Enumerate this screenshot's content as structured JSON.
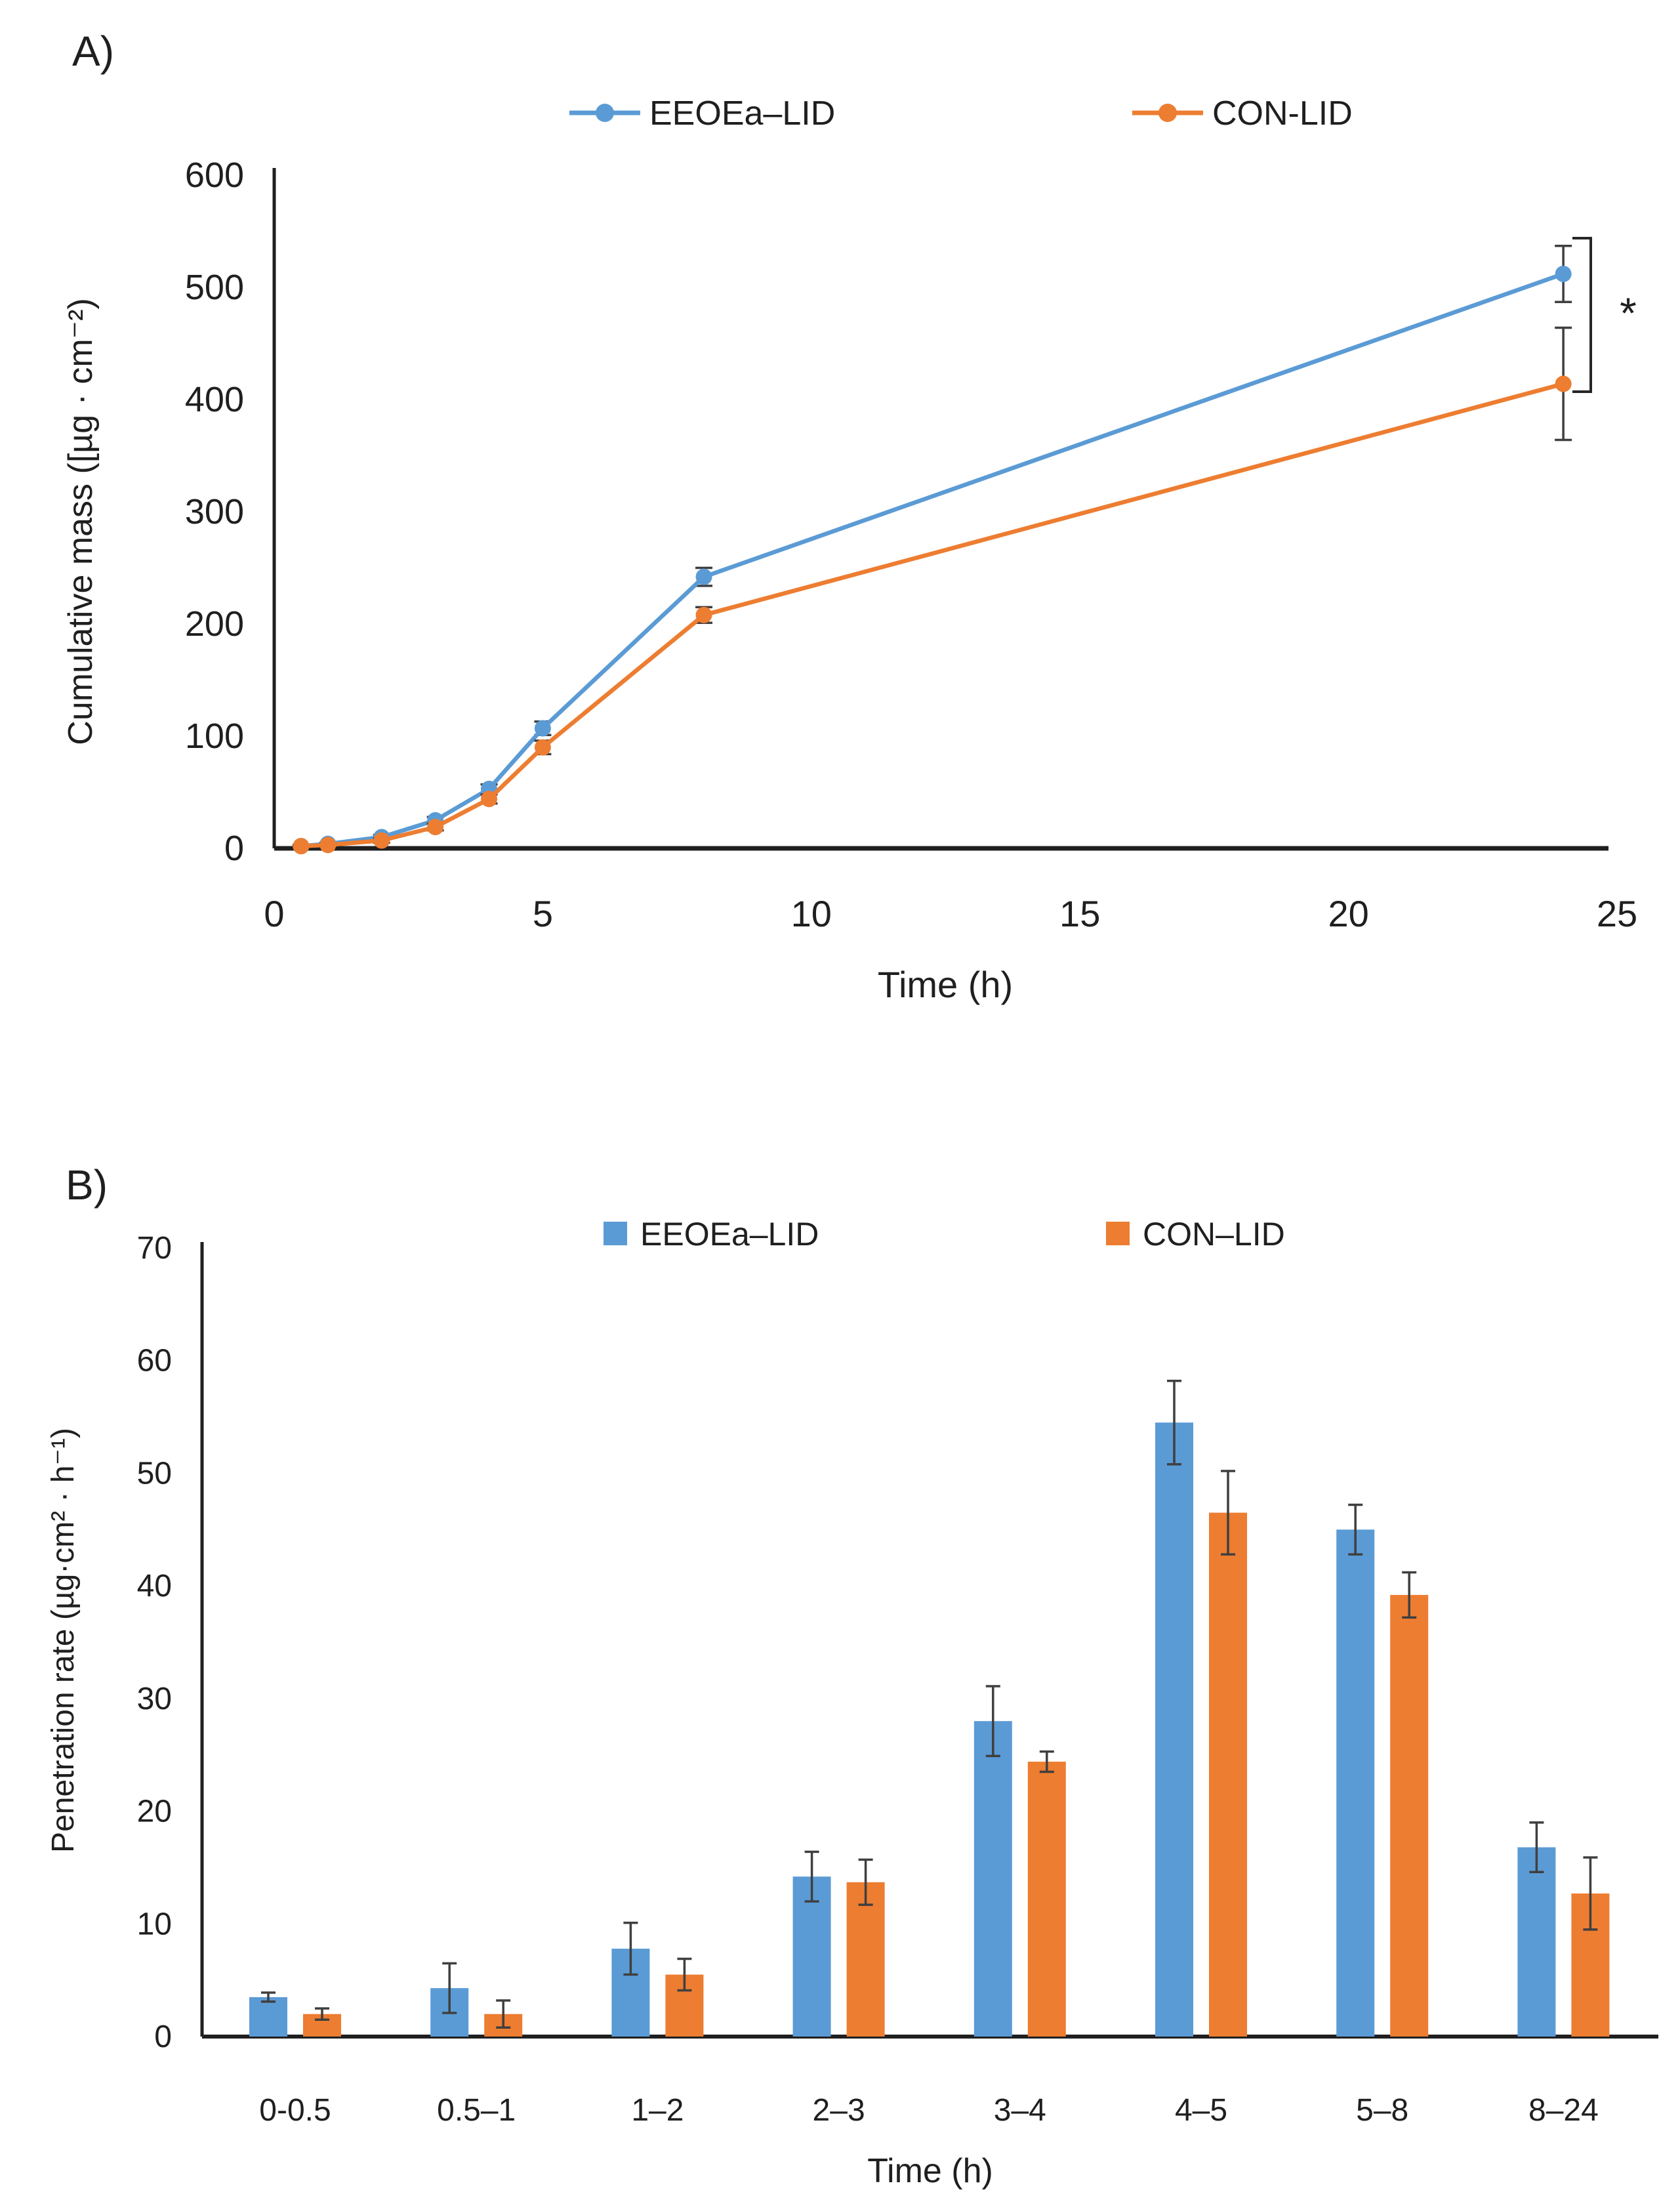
{
  "colors": {
    "series1": "#5B9BD5",
    "series2": "#ED7D31",
    "error_bar": "#3f3f3f",
    "axis": "#1f1f1f",
    "text": "#1f1f1f",
    "background": "#ffffff"
  },
  "chart_data": [
    {
      "type": "line",
      "panel_label": "A)",
      "title": "",
      "xlabel": "Time (h)",
      "ylabel": "Cumulative mass ([µg · cm⁻²)",
      "xlim": [
        0,
        25
      ],
      "ylim": [
        0,
        600
      ],
      "xticks": [
        0,
        5,
        10,
        15,
        20,
        25
      ],
      "yticks": [
        0,
        100,
        200,
        300,
        400,
        500,
        600
      ],
      "grid": false,
      "legend_position": "top-center",
      "x": [
        0.5,
        1,
        2,
        3,
        4,
        5,
        8,
        24
      ],
      "series": [
        {
          "name": "EEOEa–LID",
          "color": "#5B9BD5",
          "marker": "circle",
          "values": [
            2,
            4,
            10,
            25,
            53,
            107,
            242,
            512
          ],
          "errors": [
            1,
            1,
            2,
            3,
            4,
            6,
            8,
            25
          ]
        },
        {
          "name": "CON-LID",
          "color": "#ED7D31",
          "marker": "circle",
          "values": [
            2,
            3,
            7,
            19,
            44,
            90,
            208,
            414
          ],
          "errors": [
            1,
            1,
            2,
            3,
            4,
            6,
            7,
            50
          ]
        }
      ],
      "annotation": {
        "type": "significance-bracket",
        "symbol": "*",
        "at_x": 24,
        "between_series": [
          "EEOEa–LID",
          "CON-LID"
        ]
      }
    },
    {
      "type": "bar",
      "panel_label": "B)",
      "title": "",
      "xlabel": "Time (h)",
      "ylabel": "Penetration rate (µg·cm² · h⁻¹)",
      "ylim": [
        0,
        70
      ],
      "yticks": [
        0,
        10,
        20,
        30,
        40,
        50,
        60,
        70
      ],
      "grid": false,
      "legend_position": "top-center",
      "categories": [
        "0-0.5",
        "0.5–1",
        "1–2",
        "2–3",
        "3–4",
        "4–5",
        "5–8",
        "8–24"
      ],
      "series": [
        {
          "name": "EEOEa–LID",
          "color": "#5B9BD5",
          "values": [
            3.5,
            4.3,
            7.8,
            14.2,
            28,
            54.5,
            45,
            16.8
          ],
          "errors": [
            0.4,
            2.2,
            2.3,
            2.2,
            3.1,
            3.7,
            2.2,
            2.2
          ]
        },
        {
          "name": "CON–LID",
          "color": "#ED7D31",
          "values": [
            2,
            2,
            5.5,
            13.7,
            24.4,
            46.5,
            39.2,
            12.7
          ],
          "errors": [
            0.5,
            1.2,
            1.4,
            2,
            0.9,
            3.7,
            2,
            3.2
          ]
        }
      ]
    }
  ]
}
